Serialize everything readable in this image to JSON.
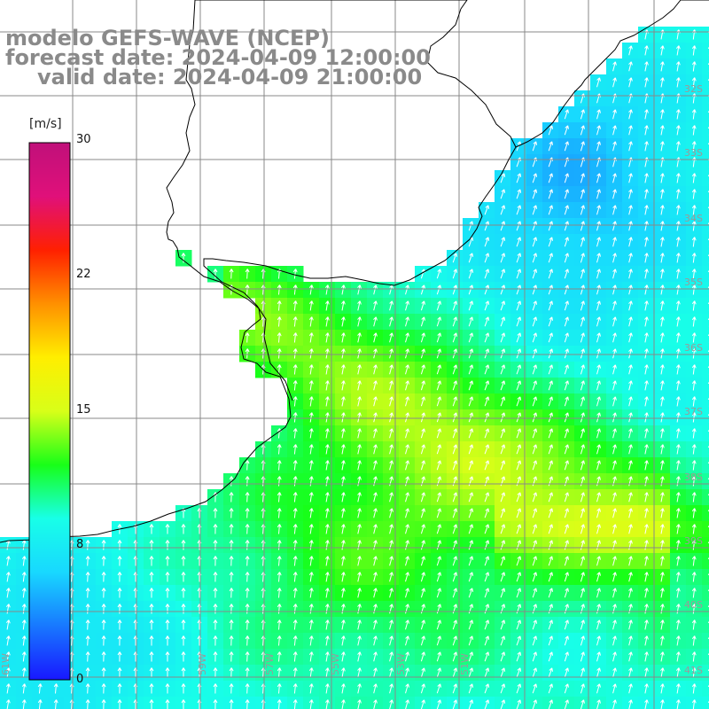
{
  "title": {
    "line1": "modelo GEFS-WAVE (NCEP)",
    "line2": "forecast date: 2024-04-09 12:00:00",
    "line3": "valid date: 2024-04-09 21:00:00"
  },
  "colorbar": {
    "unit": "[m/s]",
    "min": 0,
    "max": 30,
    "ticks": [
      "30",
      "22",
      "15",
      "8",
      "0"
    ],
    "tick_values": [
      30,
      22.5,
      15,
      7.5,
      0
    ],
    "stops": [
      "#1818ff",
      "#1878ff",
      "#18d8ff",
      "#18ffe8",
      "#18ff18",
      "#d8ff18",
      "#ffee00",
      "#ff9000",
      "#ff2000",
      "#e0107a",
      "#c0107a"
    ]
  },
  "grid_labels": {
    "lon": [
      "61W",
      "59W",
      "57W",
      "55W",
      "53W",
      "51W"
    ],
    "lat": [
      "32S",
      "33S",
      "34S",
      "35S",
      "36S",
      "37S",
      "38S",
      "39S",
      "40S",
      "41S"
    ]
  },
  "colors": {
    "land": "#ffffff",
    "coast": "#000000",
    "grid": "#888888",
    "arrow": "#ffffff"
  }
}
